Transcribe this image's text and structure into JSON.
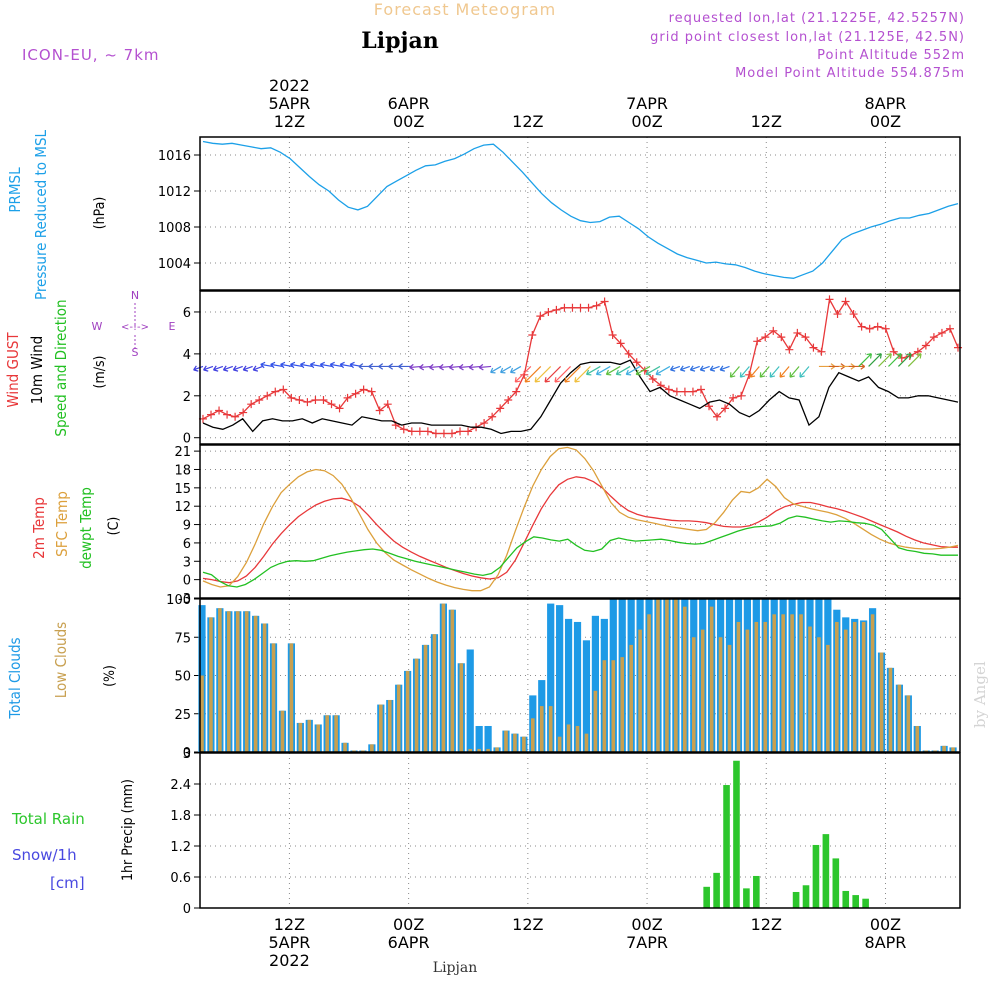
{
  "header": {
    "title": "Forecast Meteogram",
    "station": "Lipjan",
    "model": "ICON-EU, ~ 7km",
    "requested": "requested lon,lat (21.1225E, 42.5257N)",
    "grid_point": "grid point closest lon,lat (21.125E, 42.5N)",
    "point_altitude": "Point Altitude 552m",
    "model_altitude": "Model Point Altitude 554.875m"
  },
  "footer": {
    "station": "Lipjan",
    "watermark": "by Angel"
  },
  "colors": {
    "pressure": "#1ca0e8",
    "gust": "#e8383a",
    "wind10m": "#000000",
    "temp": "#e8383a",
    "sfc": "#dca03c",
    "dewpt": "#22c022",
    "total_clouds": "#1e9ae6",
    "low_clouds": "#c8a050",
    "rain": "#2cc62c",
    "snow": "#4848e0",
    "compass": "#a040c0",
    "header": "#b450d0",
    "title": "#f0c890"
  },
  "chart_data": [
    {
      "type": "line",
      "panel": "pressure",
      "ylabel_lines": [
        "PRMSL",
        "Pressure Reduced to MSL"
      ],
      "unit": "(hPa)",
      "ylim": [
        1001,
        1018
      ],
      "yticks": [
        1004,
        1008,
        1012,
        1016
      ],
      "x_hours_from_start": "hourly, 0..64",
      "series": [
        {
          "values": [
            1017.5,
            1017.3,
            1017.2,
            1017.3,
            1017.1,
            1016.9,
            1016.7,
            1016.8,
            1016.3,
            1015.6,
            1014.6,
            1013.6,
            1012.7,
            1012.0,
            1011.0,
            1010.2,
            1009.9,
            1010.3,
            1011.4,
            1012.5,
            1013.1,
            1013.7,
            1014.3,
            1014.8,
            1014.9,
            1015.3,
            1015.6,
            1016.1,
            1016.7,
            1017.1,
            1017.2,
            1016.3,
            1015.2,
            1014.1,
            1012.9,
            1011.7,
            1010.7,
            1009.9,
            1009.2,
            1008.7,
            1008.5,
            1008.6,
            1009.1,
            1009.2,
            1008.5,
            1007.8,
            1006.9,
            1006.2,
            1005.6,
            1005.0,
            1004.6,
            1004.3,
            1004.0,
            1004.1,
            1003.9,
            1003.8,
            1003.5,
            1003.1,
            1002.8,
            1002.6,
            1002.4,
            1002.3,
            1002.7,
            1003.1,
            1004.0,
            1005.3,
            1006.6,
            1007.2,
            1007.6,
            1008.0,
            1008.3,
            1008.7,
            1009.0,
            1009.0,
            1009.3,
            1009.5,
            1009.9,
            1010.3,
            1010.6
          ]
        }
      ]
    },
    {
      "type": "line",
      "panel": "wind",
      "ylabel_lines": [
        "Wind GUST",
        "10m Wind",
        "Speed and Direction"
      ],
      "unit": "(m/s)",
      "compass": {
        "n": "N",
        "s": "S",
        "w": "W",
        "e": "E",
        "arrow": "<-!->"
      },
      "ylim": [
        -0.3,
        7.0
      ],
      "yticks": [
        0,
        2,
        4,
        6
      ],
      "series": [
        {
          "name": "Wind GUST",
          "values": [
            0.9,
            1.1,
            1.3,
            1.1,
            1.0,
            1.2,
            1.6,
            1.8,
            2.0,
            2.2,
            2.3,
            1.9,
            1.8,
            1.7,
            1.8,
            1.8,
            1.6,
            1.4,
            1.9,
            2.1,
            2.3,
            2.2,
            1.3,
            1.6,
            0.6,
            0.4,
            0.3,
            0.3,
            0.3,
            0.2,
            0.2,
            0.2,
            0.3,
            0.3,
            0.5,
            0.7,
            1.0,
            1.4,
            1.8,
            2.2,
            3.0,
            4.9,
            5.8,
            6.0,
            6.1,
            6.2,
            6.2,
            6.2,
            6.2,
            6.3,
            6.5,
            4.9,
            4.5,
            4.0,
            3.6,
            3.2,
            2.8,
            2.5,
            2.3,
            2.2,
            2.2,
            2.2,
            2.3,
            1.5,
            1.0,
            1.4,
            1.9,
            2.0,
            3.0,
            4.6,
            4.8,
            5.1,
            4.8,
            4.2,
            5.0,
            4.8,
            4.3,
            4.1,
            6.6,
            5.9,
            6.5,
            5.9,
            5.3,
            5.2,
            5.3,
            5.2,
            4.1,
            3.8,
            3.9,
            4.1,
            4.4,
            4.8,
            5.0,
            5.2,
            4.3
          ]
        },
        {
          "name": "10m Wind",
          "values": [
            0.7,
            0.5,
            0.4,
            0.6,
            0.9,
            0.3,
            0.8,
            0.9,
            0.8,
            0.8,
            0.9,
            0.7,
            0.9,
            0.8,
            0.7,
            0.6,
            1.0,
            0.9,
            0.8,
            0.8,
            0.6,
            0.7,
            0.7,
            0.6,
            0.6,
            0.6,
            0.6,
            0.5,
            0.5,
            0.4,
            0.2,
            0.3,
            0.3,
            0.4,
            1.0,
            1.8,
            2.6,
            3.1,
            3.5,
            3.6,
            3.6,
            3.6,
            3.5,
            3.7,
            2.9,
            2.2,
            2.4,
            2.0,
            1.8,
            1.6,
            1.4,
            1.7,
            1.8,
            1.6,
            1.2,
            1.0,
            1.3,
            1.8,
            2.2,
            1.9,
            1.8,
            0.6,
            1.0,
            2.4,
            3.1,
            2.9,
            2.7,
            2.9,
            2.4,
            2.2,
            1.9,
            1.9,
            2.0,
            2.0,
            1.9,
            1.8,
            1.7
          ]
        },
        {
          "name": "10m Wind direction",
          "note": "arrows shown along ~3.5 m/s, colored by speed"
        }
      ]
    },
    {
      "type": "line",
      "panel": "temperature",
      "ylabel_lines": [
        "2m Temp",
        "SFC Temp",
        "dewpt Temp"
      ],
      "unit": "(C)",
      "ylim": [
        -3,
        22
      ],
      "yticks": [
        -3,
        0,
        3,
        6,
        9,
        12,
        15,
        18,
        21
      ],
      "series": [
        {
          "name": "2m Temp",
          "values": [
            0.2,
            0.0,
            -0.3,
            -0.5,
            -0.2,
            0.6,
            2.0,
            3.8,
            5.8,
            7.5,
            9.0,
            10.3,
            11.3,
            12.2,
            12.8,
            13.2,
            13.3,
            12.9,
            12.0,
            10.6,
            9.0,
            7.6,
            6.3,
            5.3,
            4.5,
            3.8,
            3.2,
            2.6,
            2.0,
            1.5,
            1.0,
            0.6,
            0.3,
            0.1,
            0.3,
            1.2,
            3.2,
            6.0,
            8.9,
            11.6,
            13.8,
            15.5,
            16.4,
            16.8,
            16.6,
            16.0,
            15.0,
            13.6,
            12.3,
            11.3,
            10.7,
            10.3,
            10.1,
            9.9,
            9.7,
            9.6,
            9.6,
            9.5,
            9.3,
            9.0,
            8.7,
            8.6,
            8.6,
            8.8,
            9.4,
            10.2,
            11.2,
            11.9,
            12.3,
            12.6,
            12.6,
            12.3,
            11.9,
            11.6,
            11.2,
            10.7,
            10.2,
            9.6,
            9.0,
            8.4,
            7.8,
            7.1,
            6.5,
            6.0,
            5.7,
            5.4,
            5.3,
            5.3
          ]
        },
        {
          "name": "SFC Temp",
          "values": [
            -0.2,
            -0.8,
            -1.2,
            -1.0,
            0.5,
            2.8,
            5.8,
            9.1,
            11.9,
            14.2,
            15.6,
            16.8,
            17.6,
            18.0,
            17.8,
            17.0,
            15.6,
            13.4,
            10.8,
            8.2,
            6.0,
            4.4,
            3.2,
            2.4,
            1.6,
            0.9,
            0.2,
            -0.4,
            -0.9,
            -1.3,
            -1.6,
            -1.8,
            -1.8,
            -1.2,
            0.8,
            4.0,
            8.0,
            11.8,
            15.3,
            18.0,
            20.1,
            21.4,
            21.6,
            21.2,
            19.8,
            17.8,
            15.2,
            12.6,
            11.0,
            10.2,
            9.8,
            9.5,
            9.2,
            8.9,
            8.6,
            8.4,
            8.2,
            8.0,
            8.2,
            9.3,
            11.0,
            13.0,
            14.4,
            14.2,
            15.0,
            16.4,
            15.2,
            13.4,
            12.4,
            12.0,
            11.6,
            11.3,
            11.0,
            10.6,
            10.0,
            9.2,
            8.3,
            7.4,
            6.6,
            6.0,
            5.6,
            5.3,
            5.1,
            5.0,
            5.0,
            5.1,
            5.3,
            5.6
          ]
        },
        {
          "name": "dewpt Temp",
          "values": [
            1.2,
            0.8,
            -0.3,
            -1.0,
            -1.2,
            -0.8,
            0.0,
            1.0,
            2.0,
            2.6,
            3.0,
            3.1,
            3.0,
            3.1,
            3.5,
            3.9,
            4.2,
            4.5,
            4.7,
            4.9,
            5.0,
            4.8,
            4.3,
            3.8,
            3.4,
            3.0,
            2.7,
            2.4,
            2.1,
            1.8,
            1.5,
            1.2,
            0.9,
            0.7,
            1.0,
            2.0,
            3.6,
            5.2,
            6.2,
            7.0,
            6.8,
            6.5,
            6.3,
            6.6,
            5.6,
            4.8,
            4.6,
            5.0,
            6.4,
            6.8,
            6.5,
            6.3,
            6.4,
            6.5,
            6.6,
            6.4,
            6.1,
            5.9,
            5.8,
            5.9,
            6.4,
            6.9,
            7.4,
            7.9,
            8.3,
            8.6,
            8.7,
            8.8,
            9.2,
            10.0,
            10.4,
            10.2,
            9.9,
            9.6,
            9.4,
            9.6,
            9.5,
            9.3,
            9.2,
            8.9,
            8.2,
            6.7,
            5.2,
            4.8,
            4.6,
            4.3,
            4.2,
            4.0,
            4.0,
            4.0
          ]
        }
      ]
    },
    {
      "type": "bar",
      "panel": "clouds",
      "ylabel_lines": [
        "Total Clouds",
        "Low Clouds"
      ],
      "unit": "(%)",
      "ylim": [
        0,
        100
      ],
      "yticks": [
        0,
        25,
        50,
        75,
        100
      ],
      "series": [
        {
          "name": "Total Clouds",
          "values": [
            96,
            88,
            94,
            92,
            92,
            92,
            89,
            84,
            71,
            27,
            71,
            19,
            21,
            18,
            24,
            24,
            6,
            1,
            1,
            5,
            31,
            34,
            44,
            53,
            61,
            70,
            77,
            97,
            93,
            58,
            67,
            17,
            17,
            3,
            14,
            12,
            10,
            37,
            47,
            97,
            96,
            87,
            85,
            73,
            89,
            87,
            100,
            100,
            100,
            100,
            100,
            100,
            100,
            100,
            100,
            100,
            100,
            100,
            100,
            100,
            100,
            100,
            100,
            100,
            100,
            100,
            100,
            100,
            100,
            100,
            100,
            93,
            88,
            87,
            86,
            94,
            65,
            55,
            44,
            37,
            17,
            1,
            1,
            4,
            3
          ]
        },
        {
          "name": "Low Clouds",
          "values": [
            50,
            88,
            94,
            92,
            92,
            92,
            89,
            84,
            71,
            27,
            71,
            19,
            21,
            18,
            24,
            24,
            6,
            1,
            1,
            5,
            31,
            34,
            44,
            53,
            61,
            70,
            77,
            97,
            93,
            58,
            2,
            2,
            2,
            3,
            14,
            12,
            10,
            22,
            30,
            30,
            10,
            18,
            17,
            12,
            40,
            60,
            60,
            62,
            70,
            80,
            90,
            100,
            100,
            100,
            95,
            75,
            80,
            95,
            75,
            70,
            85,
            80,
            85,
            85,
            90,
            90,
            90,
            90,
            82,
            75,
            70,
            85,
            80,
            85,
            85,
            90,
            65,
            55,
            44,
            37,
            17,
            1,
            1,
            4,
            3
          ]
        }
      ]
    },
    {
      "type": "bar",
      "panel": "precip",
      "ylabel_lines": [
        "Total  Rain",
        "Snow/1h",
        "[cm]"
      ],
      "unit": "1hr Precip (mm)",
      "ylim": [
        0,
        3
      ],
      "yticks": [
        0,
        0.6,
        1.2,
        1.8,
        2.4,
        3
      ],
      "series": [
        {
          "name": "Total Rain",
          "x_hours": [
            51,
            52,
            53,
            54,
            55,
            56,
            57,
            60,
            61,
            62,
            63,
            64,
            65,
            66,
            67
          ],
          "values": [
            0.41,
            0.68,
            2.38,
            2.85,
            0.38,
            0.62,
            0.0,
            0.31,
            0.44,
            1.22,
            1.43,
            0.96,
            0.33,
            0.25,
            0.18
          ]
        }
      ]
    }
  ],
  "time_axis": {
    "top_labels": [
      {
        "hour": 9,
        "lines": [
          "2022",
          "5APR",
          "12Z"
        ]
      },
      {
        "hour": 21,
        "lines": [
          "6APR",
          "00Z"
        ]
      },
      {
        "hour": 33,
        "lines": [
          "12Z"
        ]
      },
      {
        "hour": 45,
        "lines": [
          "7APR",
          "00Z"
        ]
      },
      {
        "hour": 57,
        "lines": [
          "12Z"
        ]
      },
      {
        "hour": 69,
        "lines": [
          "8APR",
          "00Z"
        ]
      }
    ],
    "bottom_labels": [
      {
        "hour": 9,
        "lines": [
          "12Z",
          "5APR",
          "2022"
        ]
      },
      {
        "hour": 21,
        "lines": [
          "00Z",
          "6APR"
        ]
      },
      {
        "hour": 33,
        "lines": [
          "12Z"
        ]
      },
      {
        "hour": 45,
        "lines": [
          "00Z",
          "7APR"
        ]
      },
      {
        "hour": 57,
        "lines": [
          "12Z"
        ]
      },
      {
        "hour": 69,
        "lines": [
          "00Z",
          "8APR"
        ]
      }
    ],
    "hours_span": [
      0,
      76.5
    ]
  }
}
